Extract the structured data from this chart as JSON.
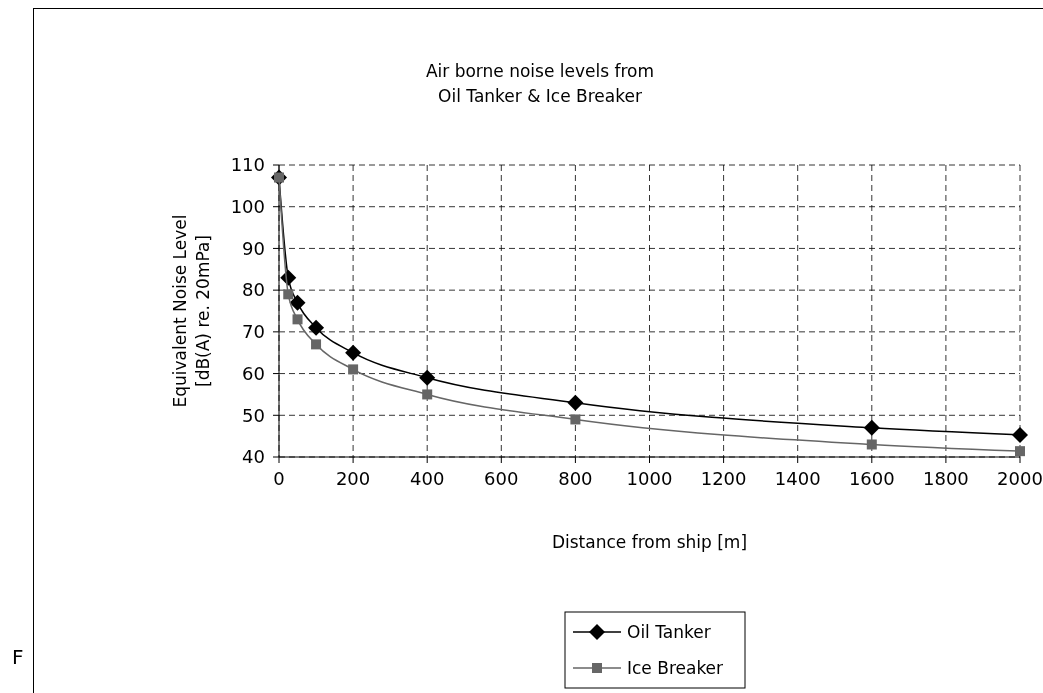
{
  "chart_data": {
    "type": "line",
    "title": "Air borne noise levels from\nOil Tanker & Ice Breaker",
    "xlabel": "Distance from ship [m]",
    "ylabel": "Equivalent Noise Level\n[dB(A) re. 20mPa]",
    "x": [
      0,
      25,
      50,
      100,
      200,
      400,
      800,
      1600,
      2000
    ],
    "series": [
      {
        "name": "Oil Tanker",
        "color": "#000000",
        "marker": "diamond",
        "values": [
          107,
          83,
          77,
          71,
          65,
          59,
          53,
          47,
          45.3
        ]
      },
      {
        "name": "Ice Breaker",
        "color": "#666666",
        "marker": "square",
        "values": [
          107,
          79,
          73,
          67,
          61,
          55,
          49,
          43,
          41.4
        ]
      }
    ],
    "xlim": [
      0,
      2000
    ],
    "xticks": [
      0,
      200,
      400,
      600,
      800,
      1000,
      1200,
      1400,
      1600,
      1800,
      2000
    ],
    "ylim": [
      40,
      110
    ],
    "yticks": [
      40,
      50,
      60,
      70,
      80,
      90,
      100,
      110
    ],
    "grid": true,
    "legend": "bottom",
    "line_style": "solid",
    "annotations": [
      "F"
    ]
  }
}
